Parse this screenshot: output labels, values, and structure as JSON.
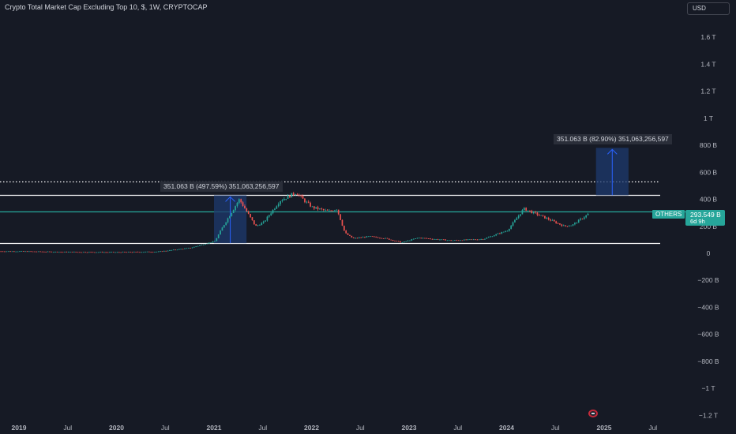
{
  "header": {
    "title": "Crypto Total Market Cap Excluding Top 10, $, 1W, CRYPTOCAP",
    "currency": "USD"
  },
  "colors": {
    "background": "#161a25",
    "bull": "#26a69a",
    "bear": "#ef5350",
    "measure_fill": "#1e3a6e",
    "measure_arrow": "#2962ff",
    "line_white": "#ffffff",
    "line_teal": "#26a69a"
  },
  "chart_data": {
    "type": "candlestick",
    "title": "Crypto Total Market Cap Excluding Top 10, $, 1W, CRYPTOCAP",
    "xlabel": "",
    "ylabel": "",
    "y_unit": "billion USD",
    "x_tick_labels": [
      "2019",
      "Jul",
      "2020",
      "Jul",
      "2021",
      "Jul",
      "2022",
      "Jul",
      "2023",
      "Jul",
      "2024",
      "Jul",
      "2025",
      "Jul"
    ],
    "y_tick_labels": [
      "1.6 T",
      "1.4 T",
      "1.2 T",
      "1 T",
      "800 B",
      "600 B",
      "400 B",
      "200 B",
      "0",
      "−200 B",
      "−400 B",
      "−600 B",
      "−800 B",
      "−1 T",
      "−1.2 T"
    ],
    "y_ticks": [
      1600,
      1400,
      1200,
      1000,
      800,
      600,
      400,
      200,
      0,
      -200,
      -400,
      -600,
      -800,
      -1000,
      -1200
    ],
    "ylim": [
      -1230,
      1770
    ],
    "grid": false,
    "price_series": [
      {
        "date": "2019-01",
        "value": 15
      },
      {
        "date": "2019-06",
        "value": 10
      },
      {
        "date": "2020-01",
        "value": 8
      },
      {
        "date": "2020-06",
        "value": 12
      },
      {
        "date": "2020-10",
        "value": 40
      },
      {
        "date": "2021-01",
        "value": 90
      },
      {
        "date": "2021-02",
        "value": 200
      },
      {
        "date": "2021-04",
        "value": 400
      },
      {
        "date": "2021-05",
        "value": 300
      },
      {
        "date": "2021-06",
        "value": 200
      },
      {
        "date": "2021-07",
        "value": 230
      },
      {
        "date": "2021-09",
        "value": 390
      },
      {
        "date": "2021-11",
        "value": 450
      },
      {
        "date": "2021-12",
        "value": 390
      },
      {
        "date": "2022-01",
        "value": 340
      },
      {
        "date": "2022-03",
        "value": 310
      },
      {
        "date": "2022-04",
        "value": 330
      },
      {
        "date": "2022-05",
        "value": 150
      },
      {
        "date": "2022-06",
        "value": 110
      },
      {
        "date": "2022-08",
        "value": 125
      },
      {
        "date": "2022-10",
        "value": 110
      },
      {
        "date": "2022-12",
        "value": 80
      },
      {
        "date": "2023-02",
        "value": 115
      },
      {
        "date": "2023-06",
        "value": 95
      },
      {
        "date": "2023-10",
        "value": 105
      },
      {
        "date": "2024-01",
        "value": 170
      },
      {
        "date": "2024-03",
        "value": 330
      },
      {
        "date": "2024-05",
        "value": 280
      },
      {
        "date": "2024-08",
        "value": 200
      },
      {
        "date": "2024-09",
        "value": 210
      },
      {
        "date": "2024-11",
        "value": 293.549
      }
    ],
    "horizontal_lines": [
      {
        "value": 530,
        "style": "dotted",
        "color": "#ffffff"
      },
      {
        "value": 430,
        "style": "solid",
        "color": "#ffffff"
      },
      {
        "value": 310,
        "style": "solid",
        "color": "#26a69a"
      },
      {
        "value": 75,
        "style": "solid",
        "color": "#ffffff"
      }
    ],
    "measurements": [
      {
        "from": "2021-01",
        "to": "2021-05",
        "low": 75,
        "high": 430,
        "label": "351.063 B (497.59%) 351,063,256,597"
      },
      {
        "from": "2024-12",
        "to": "2025-04",
        "low": 430,
        "high": 781,
        "label": "351.063 B (82.90%) 351,063,256,597"
      }
    ],
    "last": {
      "symbol": "OTHERS",
      "price": "293.549 B",
      "countdown": "6d 9h",
      "value": 293.549
    }
  }
}
